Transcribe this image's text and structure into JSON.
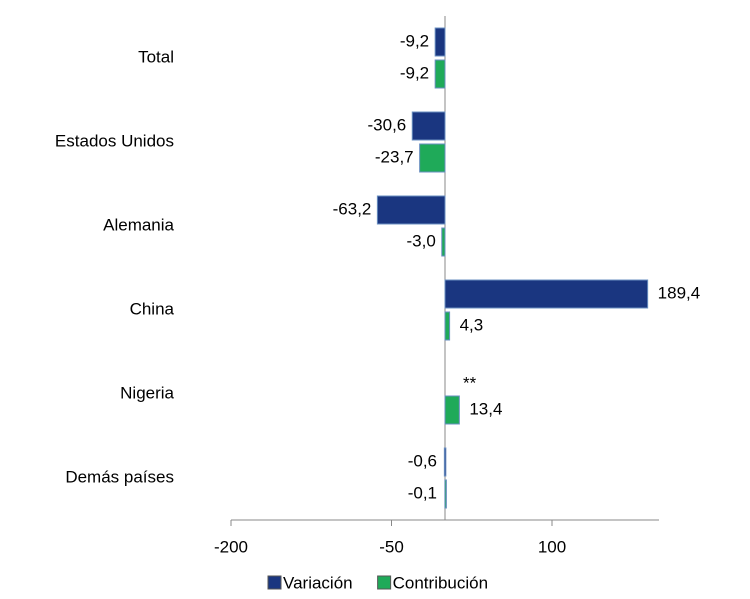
{
  "chart_data": {
    "type": "hbar",
    "categories": [
      "Total",
      "Estados Unidos",
      "Alemania",
      "China",
      "Nigeria",
      "Demás países"
    ],
    "series": [
      {
        "name": "Variación",
        "color": "#1a3680",
        "values": [
          -9.2,
          -30.6,
          -63.2,
          189.4,
          null,
          -0.6
        ],
        "value_labels": [
          "-9,2",
          "-30,6",
          "-63,2",
          "189,4",
          null,
          "-0,6"
        ]
      },
      {
        "name": "Contribución",
        "color": "#1faa59",
        "values": [
          -9.2,
          -23.7,
          -3.0,
          4.3,
          13.4,
          -0.1
        ],
        "value_labels": [
          "-9,2",
          "-23,7",
          "-3,0",
          "4,3",
          "13,4",
          "-0,1"
        ]
      }
    ],
    "annotation": "**",
    "xlim": [
      -200,
      200
    ],
    "xticks": [
      -200,
      -50,
      100
    ],
    "legend": "bottom"
  }
}
